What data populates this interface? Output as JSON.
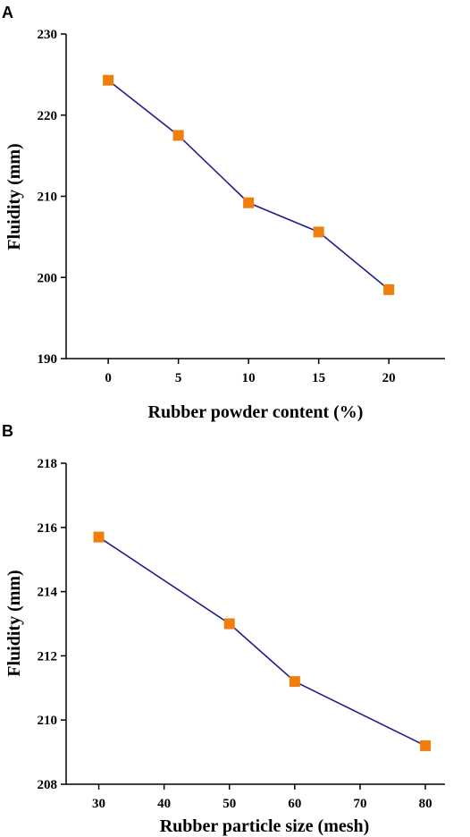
{
  "colors": {
    "line": "#1f1d8a",
    "marker": "#f07e0c",
    "axis": "#000000"
  },
  "chart_data": [
    {
      "panel": "A",
      "type": "line",
      "marker": "square",
      "xlabel": "Rubber powder content (%)",
      "ylabel": "Fluidity (mm)",
      "xlim": [
        -3,
        24
      ],
      "ylim": [
        190,
        230
      ],
      "xticks": [
        0,
        5,
        10,
        15,
        20
      ],
      "yticks": [
        190,
        200,
        210,
        220,
        230
      ],
      "grid": false,
      "x": [
        0,
        5,
        10,
        15,
        20
      ],
      "y": [
        224.3,
        217.5,
        209.2,
        205.6,
        198.5
      ]
    },
    {
      "panel": "B",
      "type": "line",
      "marker": "square",
      "xlabel": "Rubber particle size (mesh)",
      "ylabel": "Fluidity (mm)",
      "xlim": [
        25,
        83
      ],
      "ylim": [
        208,
        218
      ],
      "xticks": [
        30,
        40,
        50,
        60,
        70,
        80
      ],
      "yticks": [
        208,
        210,
        212,
        214,
        216,
        218
      ],
      "grid": false,
      "x": [
        30,
        50,
        60,
        80
      ],
      "y": [
        215.7,
        213.0,
        211.2,
        209.2
      ]
    }
  ]
}
